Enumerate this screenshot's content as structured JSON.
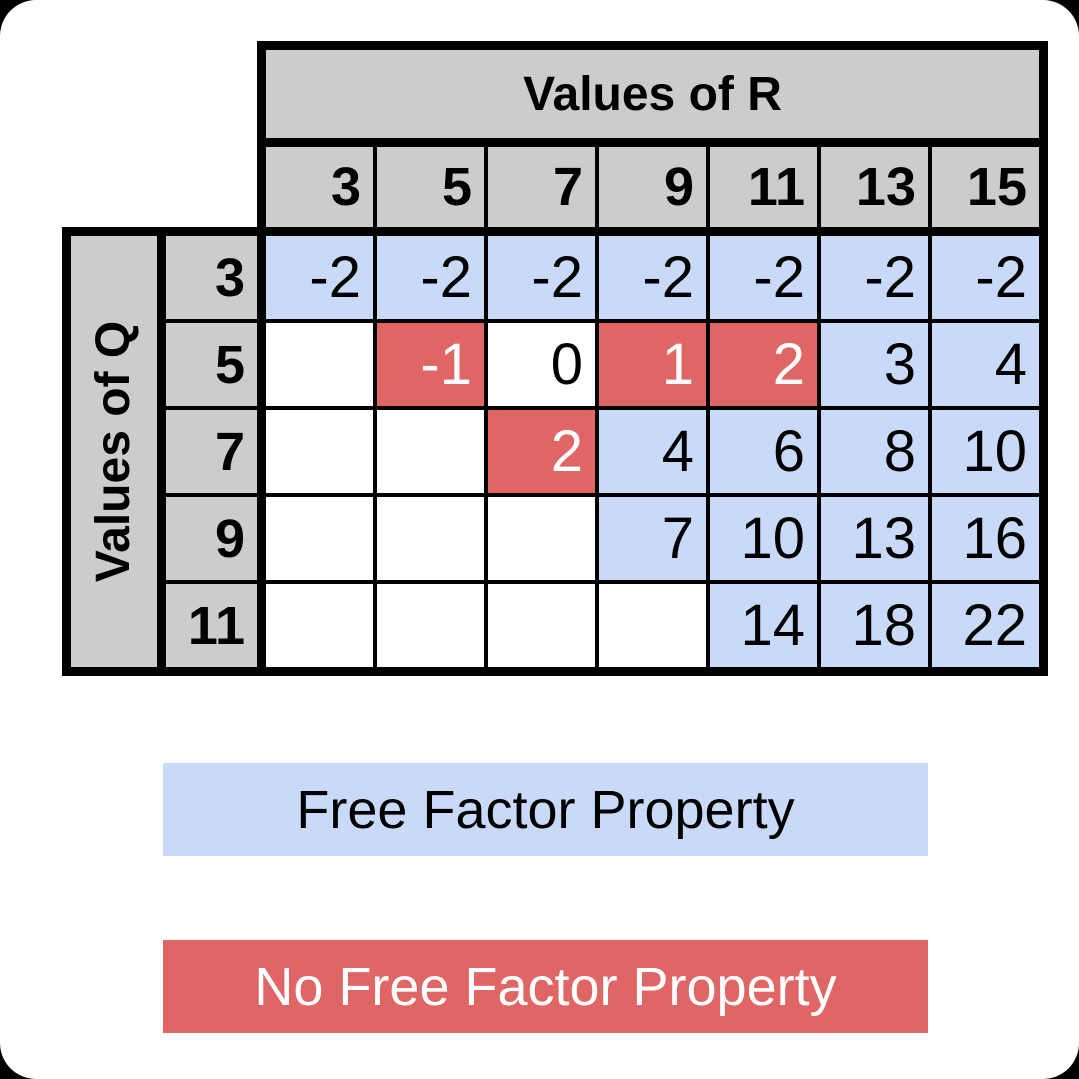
{
  "colors": {
    "header_gray": "#cccccc",
    "free_factor_blue": "#c9daf8",
    "no_free_factor_red": "#e06666",
    "border_black": "#000000"
  },
  "table": {
    "r_title": "Values of R",
    "q_title": "Values of Q",
    "r_values": [
      "3",
      "5",
      "7",
      "9",
      "11",
      "13",
      "15"
    ],
    "q_values": [
      "3",
      "5",
      "7",
      "9",
      "11"
    ],
    "cells": [
      [
        {
          "v": "-2",
          "t": "free"
        },
        {
          "v": "-2",
          "t": "free"
        },
        {
          "v": "-2",
          "t": "free"
        },
        {
          "v": "-2",
          "t": "free"
        },
        {
          "v": "-2",
          "t": "free"
        },
        {
          "v": "-2",
          "t": "free"
        },
        {
          "v": "-2",
          "t": "free"
        }
      ],
      [
        {
          "v": "",
          "t": "empty"
        },
        {
          "v": "-1",
          "t": "no_free"
        },
        {
          "v": "0",
          "t": "neither"
        },
        {
          "v": "1",
          "t": "no_free"
        },
        {
          "v": "2",
          "t": "no_free"
        },
        {
          "v": "3",
          "t": "free"
        },
        {
          "v": "4",
          "t": "free"
        }
      ],
      [
        {
          "v": "",
          "t": "empty"
        },
        {
          "v": "",
          "t": "empty"
        },
        {
          "v": "2",
          "t": "no_free"
        },
        {
          "v": "4",
          "t": "free"
        },
        {
          "v": "6",
          "t": "free"
        },
        {
          "v": "8",
          "t": "free"
        },
        {
          "v": "10",
          "t": "free"
        }
      ],
      [
        {
          "v": "",
          "t": "empty"
        },
        {
          "v": "",
          "t": "empty"
        },
        {
          "v": "",
          "t": "empty"
        },
        {
          "v": "7",
          "t": "free"
        },
        {
          "v": "10",
          "t": "free"
        },
        {
          "v": "13",
          "t": "free"
        },
        {
          "v": "16",
          "t": "free"
        }
      ],
      [
        {
          "v": "",
          "t": "empty"
        },
        {
          "v": "",
          "t": "empty"
        },
        {
          "v": "",
          "t": "empty"
        },
        {
          "v": "",
          "t": "empty"
        },
        {
          "v": "14",
          "t": "free"
        },
        {
          "v": "18",
          "t": "free"
        },
        {
          "v": "22",
          "t": "free"
        }
      ]
    ]
  },
  "legend": {
    "free_label": "Free Factor Property",
    "nofree_label": "No Free Factor Property"
  },
  "chart_data": {
    "type": "table",
    "title": "Free Factor Property table for values of Q and R",
    "column_axis_label": "Values of R",
    "row_axis_label": "Values of Q",
    "columns": [
      3,
      5,
      7,
      9,
      11,
      13,
      15
    ],
    "rows": [
      3,
      5,
      7,
      9,
      11
    ],
    "values": [
      [
        -2,
        -2,
        -2,
        -2,
        -2,
        -2,
        -2
      ],
      [
        null,
        -1,
        0,
        1,
        2,
        3,
        4
      ],
      [
        null,
        null,
        2,
        4,
        6,
        8,
        10
      ],
      [
        null,
        null,
        null,
        7,
        10,
        13,
        16
      ],
      [
        null,
        null,
        null,
        null,
        14,
        18,
        22
      ]
    ],
    "cell_status": [
      [
        "free",
        "free",
        "free",
        "free",
        "free",
        "free",
        "free"
      ],
      [
        "empty",
        "no_free",
        "neither",
        "no_free",
        "no_free",
        "free",
        "free"
      ],
      [
        "empty",
        "empty",
        "no_free",
        "free",
        "free",
        "free",
        "free"
      ],
      [
        "empty",
        "empty",
        "empty",
        "free",
        "free",
        "free",
        "free"
      ],
      [
        "empty",
        "empty",
        "empty",
        "empty",
        "free",
        "free",
        "free"
      ]
    ],
    "legend_entries": [
      {
        "label": "Free Factor Property",
        "color": "#c9daf8"
      },
      {
        "label": "No Free Factor Property",
        "color": "#e06666"
      }
    ],
    "legend_position": "bottom"
  }
}
